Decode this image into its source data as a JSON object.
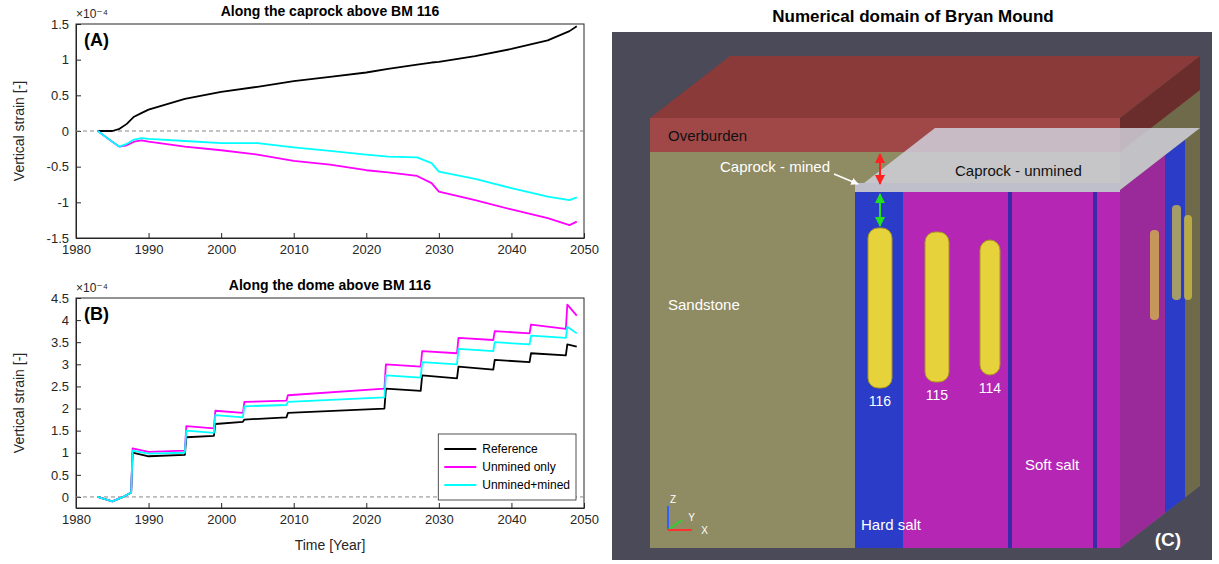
{
  "chart_data": [
    {
      "type": "line",
      "title": "Along the caprock above BM 116",
      "panel_label": "(A)",
      "y_label": "Vertical strain [-]",
      "y_multiplier": "×10⁻⁴",
      "x": [
        1983,
        1985,
        1986,
        1987,
        1988,
        1989,
        1990,
        1995,
        2000,
        2005,
        2010,
        2015,
        2020,
        2023,
        2027,
        2029,
        2030,
        2035,
        2040,
        2045,
        2048,
        2049
      ],
      "series": [
        {
          "name": "Reference",
          "color": "#000000",
          "values": [
            0,
            0,
            0.03,
            0.1,
            0.2,
            0.25,
            0.3,
            0.45,
            0.55,
            0.62,
            0.7,
            0.76,
            0.82,
            0.87,
            0.93,
            0.96,
            0.97,
            1.05,
            1.15,
            1.27,
            1.4,
            1.47
          ]
        },
        {
          "name": "Unmined only",
          "color": "#ff00ff",
          "values": [
            0,
            -0.15,
            -0.22,
            -0.2,
            -0.15,
            -0.13,
            -0.15,
            -0.22,
            -0.27,
            -0.33,
            -0.42,
            -0.47,
            -0.55,
            -0.58,
            -0.63,
            -0.73,
            -0.85,
            -0.97,
            -1.1,
            -1.22,
            -1.32,
            -1.27
          ]
        },
        {
          "name": "Unmined+mined",
          "color": "#00ffff",
          "values": [
            0,
            -0.15,
            -0.22,
            -0.18,
            -0.12,
            -0.1,
            -0.11,
            -0.14,
            -0.17,
            -0.17,
            -0.23,
            -0.28,
            -0.33,
            -0.36,
            -0.37,
            -0.45,
            -0.57,
            -0.67,
            -0.8,
            -0.92,
            -0.97,
            -0.93
          ]
        }
      ],
      "reference_line": 0,
      "xlim": [
        1980,
        2050
      ],
      "xticks": [
        1980,
        1990,
        2000,
        2010,
        2020,
        2030,
        2040,
        2050
      ],
      "ylim": [
        -1.5,
        1.5
      ],
      "yticks": [
        -1.5,
        -1,
        -0.5,
        0,
        0.5,
        1,
        1.5
      ],
      "grid": false
    },
    {
      "type": "line",
      "title": "Along the dome above BM 116",
      "panel_label": "(B)",
      "x_label": "Time [Year]",
      "y_label": "Vertical strain [-]",
      "y_multiplier": "×10⁻⁴",
      "x": [
        1983,
        1985,
        1986.5,
        1987.6,
        1987.8,
        1990,
        1995,
        1995.2,
        1999,
        1999.2,
        2003,
        2003.2,
        2009,
        2009.2,
        2022.5,
        2022.7,
        2027.5,
        2027.7,
        2032.5,
        2032.7,
        2037.5,
        2037.7,
        2042.5,
        2042.7,
        2047.5,
        2047.7,
        2049
      ],
      "series": [
        {
          "name": "Reference",
          "color": "#000000",
          "values": [
            0,
            -0.1,
            0,
            0.1,
            1.0,
            0.92,
            0.95,
            1.35,
            1.38,
            1.65,
            1.7,
            1.75,
            1.8,
            1.9,
            2.0,
            2.45,
            2.4,
            2.75,
            2.68,
            2.95,
            2.88,
            3.1,
            3.05,
            3.25,
            3.2,
            3.45,
            3.4
          ]
        },
        {
          "name": "Unmined only",
          "color": "#ff00ff",
          "values": [
            0,
            -0.1,
            0,
            0.1,
            1.1,
            1.02,
            1.05,
            1.6,
            1.55,
            1.95,
            1.9,
            2.15,
            2.18,
            2.3,
            2.45,
            3.0,
            2.95,
            3.3,
            3.25,
            3.6,
            3.55,
            3.75,
            3.7,
            3.9,
            3.8,
            4.35,
            4.1
          ]
        },
        {
          "name": "Unmined+mined",
          "color": "#00ffff",
          "values": [
            0,
            -0.1,
            0,
            0.1,
            1.05,
            0.98,
            1.0,
            1.5,
            1.45,
            1.85,
            1.8,
            2.05,
            2.08,
            2.15,
            2.25,
            2.75,
            2.7,
            3.05,
            3.0,
            3.35,
            3.3,
            3.5,
            3.45,
            3.65,
            3.6,
            3.85,
            3.7
          ]
        }
      ],
      "reference_line": 0,
      "xlim": [
        1980,
        2050
      ],
      "xticks": [
        1980,
        1990,
        2000,
        2010,
        2020,
        2030,
        2040,
        2050
      ],
      "ylim": [
        -0.25,
        4.5
      ],
      "yticks": [
        0,
        0.5,
        1,
        1.5,
        2,
        2.5,
        3,
        3.5,
        4,
        4.5
      ],
      "legend": "lower right",
      "grid": false
    }
  ],
  "diagram": {
    "title": "Numerical domain of Bryan Mound",
    "panel_label": "(C)",
    "regions": [
      {
        "label": "Overburden"
      },
      {
        "label": "Caprock - mined"
      },
      {
        "label": "Caprock - unmined"
      },
      {
        "label": "Sandstone"
      },
      {
        "label": "Hard salt"
      },
      {
        "label": "Soft salt"
      }
    ],
    "caverns": [
      {
        "label": "116"
      },
      {
        "label": "115"
      },
      {
        "label": "114"
      }
    ],
    "axes": [
      "Z",
      "Y",
      "X"
    ]
  }
}
